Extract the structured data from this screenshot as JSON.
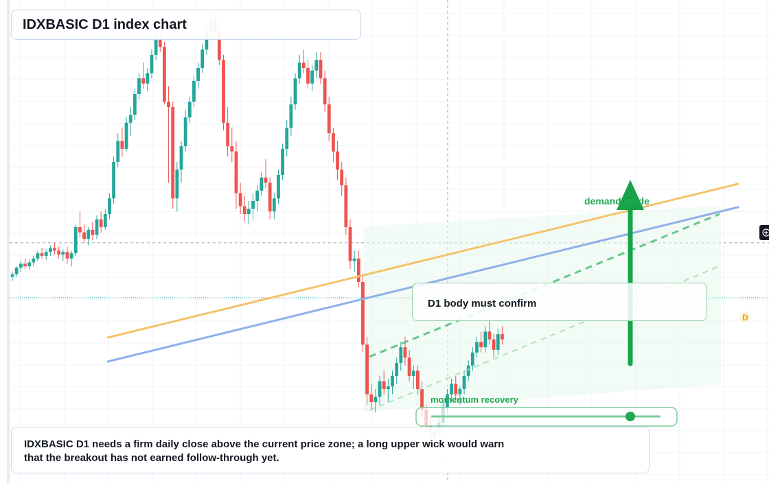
{
  "title": "IDXBASIC D1 index chart",
  "labels": {
    "confirm": "D1 body must confirm",
    "demand": "demand guide",
    "momentum": "momentum recovery",
    "badge": "D"
  },
  "note": "IDXBASIC D1 needs a firm daily close above the current price zone; a long upper wick would warn that the breakout has not earned follow-through yet.",
  "colors": {
    "up": "#26a69a",
    "down": "#ef5350",
    "orange_line": "#f4c36a",
    "blue_line": "#8fb0ea",
    "green": "#16a34a",
    "badge": "#f59e0b"
  },
  "chart_data": {
    "type": "candlestick",
    "series": [
      {
        "name": "",
        "ohlc": [
          [
            348,
            352,
            345,
            350
          ],
          [
            350,
            356,
            348,
            355
          ],
          [
            355,
            360,
            352,
            358
          ],
          [
            358,
            362,
            354,
            356
          ],
          [
            356,
            361,
            353,
            359
          ],
          [
            359,
            364,
            356,
            362
          ],
          [
            362,
            368,
            360,
            366
          ],
          [
            366,
            370,
            362,
            364
          ],
          [
            364,
            369,
            361,
            367
          ],
          [
            367,
            372,
            364,
            370
          ],
          [
            370,
            374,
            365,
            368
          ],
          [
            368,
            371,
            362,
            365
          ],
          [
            365,
            369,
            360,
            367
          ],
          [
            367,
            371,
            358,
            362
          ],
          [
            362,
            368,
            356,
            366
          ],
          [
            366,
            388,
            364,
            386
          ],
          [
            386,
            398,
            378,
            382
          ],
          [
            382,
            388,
            374,
            377
          ],
          [
            377,
            386,
            372,
            384
          ],
          [
            384,
            390,
            376,
            380
          ],
          [
            380,
            395,
            377,
            392
          ],
          [
            392,
            398,
            382,
            386
          ],
          [
            386,
            400,
            384,
            396
          ],
          [
            396,
            412,
            392,
            408
          ],
          [
            408,
            440,
            404,
            436
          ],
          [
            436,
            458,
            432,
            452
          ],
          [
            452,
            462,
            440,
            446
          ],
          [
            446,
            470,
            444,
            466
          ],
          [
            466,
            478,
            456,
            472
          ],
          [
            472,
            492,
            468,
            488
          ],
          [
            488,
            504,
            484,
            500
          ],
          [
            500,
            512,
            492,
            496
          ],
          [
            496,
            508,
            490,
            504
          ],
          [
            504,
            522,
            500,
            518
          ],
          [
            518,
            536,
            514,
            530
          ],
          [
            530,
            540,
            520,
            524
          ],
          [
            524,
            528,
            480,
            482
          ],
          [
            482,
            494,
            420,
            478
          ],
          [
            478,
            482,
            400,
            408
          ],
          [
            408,
            436,
            398,
            430
          ],
          [
            430,
            452,
            420,
            448
          ],
          [
            448,
            476,
            444,
            470
          ],
          [
            470,
            486,
            466,
            482
          ],
          [
            482,
            502,
            478,
            498
          ],
          [
            498,
            512,
            492,
            508
          ],
          [
            508,
            526,
            504,
            522
          ],
          [
            522,
            540,
            518,
            536
          ],
          [
            536,
            548,
            530,
            544
          ],
          [
            544,
            552,
            530,
            536
          ],
          [
            536,
            540,
            510,
            514
          ],
          [
            514,
            518,
            460,
            466
          ],
          [
            466,
            478,
            440,
            448
          ],
          [
            448,
            462,
            436,
            444
          ],
          [
            444,
            452,
            400,
            412
          ],
          [
            412,
            420,
            396,
            402
          ],
          [
            402,
            410,
            390,
            396
          ],
          [
            396,
            406,
            388,
            400
          ],
          [
            400,
            412,
            392,
            406
          ],
          [
            406,
            418,
            398,
            414
          ],
          [
            414,
            428,
            410,
            424
          ],
          [
            424,
            438,
            416,
            420
          ],
          [
            420,
            424,
            392,
            398
          ],
          [
            398,
            412,
            392,
            408
          ],
          [
            408,
            430,
            404,
            426
          ],
          [
            426,
            450,
            422,
            446
          ],
          [
            446,
            468,
            440,
            462
          ],
          [
            462,
            486,
            456,
            480
          ],
          [
            480,
            504,
            476,
            500
          ],
          [
            500,
            518,
            496,
            512
          ],
          [
            512,
            522,
            504,
            508
          ],
          [
            508,
            514,
            492,
            496
          ],
          [
            496,
            510,
            490,
            506
          ],
          [
            506,
            520,
            500,
            514
          ],
          [
            514,
            520,
            496,
            500
          ],
          [
            500,
            506,
            474,
            480
          ],
          [
            480,
            486,
            452,
            458
          ],
          [
            458,
            462,
            436,
            444
          ],
          [
            444,
            452,
            422,
            430
          ],
          [
            430,
            436,
            410,
            418
          ],
          [
            418,
            424,
            380,
            386
          ],
          [
            386,
            392,
            354,
            360
          ],
          [
            360,
            368,
            352,
            362
          ],
          [
            362,
            368,
            340,
            344
          ],
          [
            344,
            350,
            290,
            296
          ],
          [
            296,
            302,
            250,
            258
          ],
          [
            258,
            266,
            246,
            252
          ],
          [
            252,
            262,
            244,
            256
          ],
          [
            256,
            272,
            250,
            268
          ],
          [
            268,
            276,
            258,
            262
          ],
          [
            262,
            270,
            252,
            264
          ],
          [
            264,
            276,
            258,
            272
          ],
          [
            272,
            286,
            266,
            282
          ],
          [
            282,
            298,
            276,
            294
          ],
          [
            294,
            302,
            280,
            286
          ],
          [
            286,
            292,
            268,
            272
          ],
          [
            272,
            280,
            262,
            276
          ],
          [
            276,
            280,
            258,
            262
          ],
          [
            262,
            268,
            240,
            246
          ],
          [
            246,
            250,
            228,
            234
          ],
          [
            234,
            240,
            220,
            226
          ],
          [
            226,
            234,
            218,
            230
          ],
          [
            230,
            240,
            224,
            236
          ],
          [
            236,
            252,
            232,
            248
          ],
          [
            248,
            262,
            244,
            258
          ],
          [
            258,
            270,
            252,
            266
          ],
          [
            266,
            272,
            254,
            258
          ],
          [
            258,
            264,
            250,
            262
          ],
          [
            262,
            276,
            258,
            272
          ],
          [
            272,
            284,
            268,
            280
          ],
          [
            280,
            294,
            276,
            290
          ],
          [
            290,
            302,
            286,
            298
          ],
          [
            298,
            306,
            290,
            294
          ],
          [
            294,
            310,
            290,
            306
          ],
          [
            306,
            314,
            296,
            300
          ],
          [
            300,
            304,
            286,
            292
          ],
          [
            292,
            308,
            288,
            304
          ],
          [
            304,
            310,
            296,
            300
          ]
        ]
      }
    ],
    "xlabel": "",
    "ylabel": "",
    "grid": true,
    "current_price_line": 332,
    "crosshair_price": 374
  }
}
